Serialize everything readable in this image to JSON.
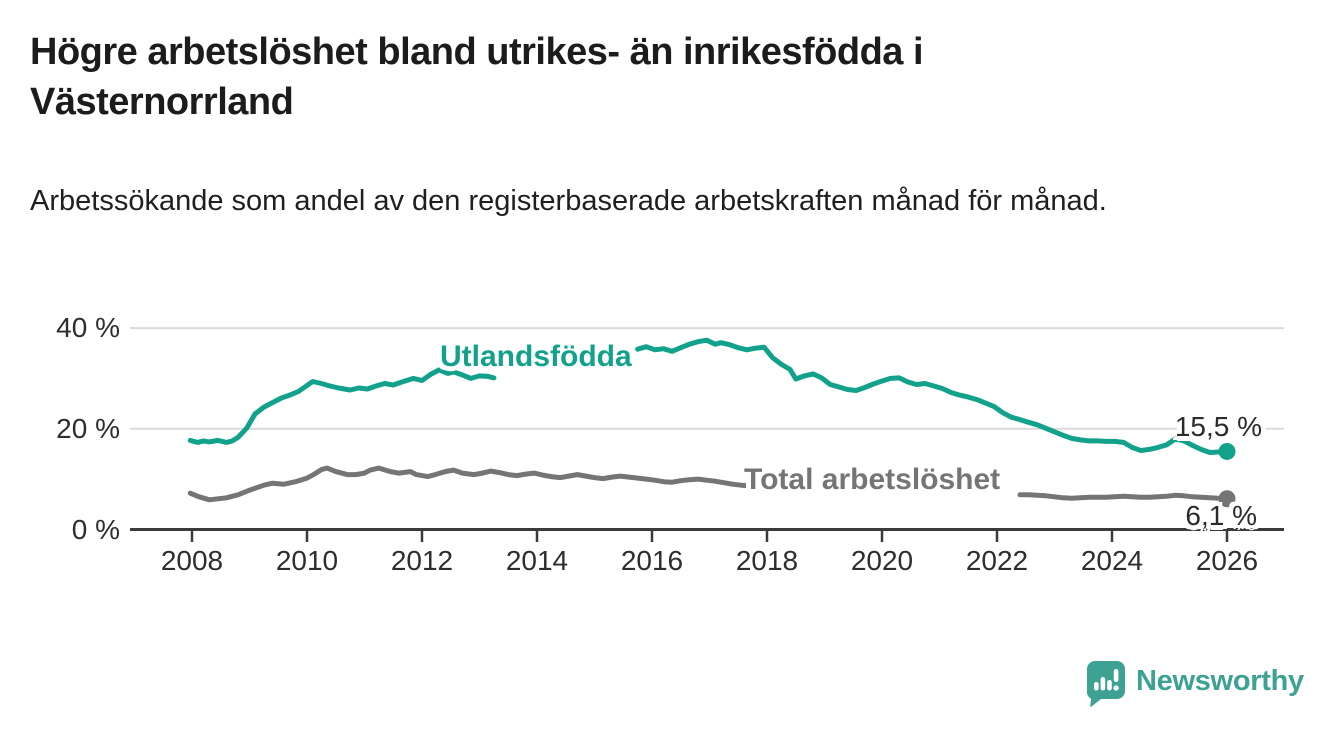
{
  "title": "Högre arbetslöshet bland utrikes- än inrikesfödda i Västernorrland",
  "subtitle": "Arbetssökande som andel av den registerbaserade arbetskraften månad för månad.",
  "branding": {
    "logo_text": "Newsworthy",
    "logo_icon": "speech-bubble-bar-chart-icon",
    "logo_color": "#3da193"
  },
  "colors": {
    "axis": "#3b3b3b",
    "grid": "#dadada",
    "title_text": "#1c1c1c",
    "value_label_text": "#2b2b2b",
    "series_utlandsfodda": "#12a28c",
    "series_total": "#757575"
  },
  "chart_data": {
    "type": "line",
    "title": "Högre arbetslöshet bland utrikes- än inrikesfödda i Västernorrland",
    "subtitle": "Arbetssökande som andel av den registerbaserade arbetskraften månad för månad.",
    "xlabel": "",
    "ylabel": "",
    "grid": "horizontal-only",
    "xlim": [
      2006.9,
      2027.0
    ],
    "ylim": [
      0,
      43
    ],
    "x_ticks": [
      2008,
      2010,
      2012,
      2014,
      2016,
      2018,
      2020,
      2022,
      2024,
      2026
    ],
    "y_ticks": [
      {
        "value": 0,
        "label": "0 %"
      },
      {
        "value": 20,
        "label": "20 %"
      },
      {
        "value": 40,
        "label": "40 %"
      }
    ],
    "note": "lines hidden where inline series labels overlap (gaps in point arrays)",
    "series": [
      {
        "name": "Utlandsfödda",
        "color": "#12a28c",
        "end_label": "15,5 %",
        "end_value": 15.5,
        "points": [
          [
            2007.97,
            17.7
          ],
          [
            2008.1,
            17.3
          ],
          [
            2008.2,
            17.6
          ],
          [
            2008.3,
            17.4
          ],
          [
            2008.45,
            17.7
          ],
          [
            2008.6,
            17.3
          ],
          [
            2008.7,
            17.6
          ],
          [
            2008.8,
            18.3
          ],
          [
            2008.95,
            20.1
          ],
          [
            2009.1,
            23.0
          ],
          [
            2009.25,
            24.3
          ],
          [
            2009.4,
            25.2
          ],
          [
            2009.55,
            26.1
          ],
          [
            2009.7,
            26.7
          ],
          [
            2009.85,
            27.4
          ],
          [
            2010.0,
            28.6
          ],
          [
            2010.1,
            29.4
          ],
          [
            2010.25,
            29.0
          ],
          [
            2010.4,
            28.5
          ],
          [
            2010.55,
            28.1
          ],
          [
            2010.75,
            27.7
          ],
          [
            2010.9,
            28.1
          ],
          [
            2011.05,
            27.9
          ],
          [
            2011.2,
            28.5
          ],
          [
            2011.35,
            29.0
          ],
          [
            2011.5,
            28.7
          ],
          [
            2011.65,
            29.3
          ],
          [
            2011.85,
            30.0
          ],
          [
            2012.0,
            29.6
          ],
          [
            2012.15,
            30.8
          ],
          [
            2012.3,
            31.7
          ],
          [
            2012.45,
            31.0
          ],
          [
            2012.55,
            31.3
          ],
          [
            2012.7,
            30.7
          ],
          [
            2012.85,
            30.0
          ],
          [
            2013.0,
            30.5
          ],
          [
            2013.15,
            30.4
          ],
          [
            2013.25,
            30.1
          ],
          [
            2015.75,
            35.8
          ],
          [
            2015.9,
            36.3
          ],
          [
            2016.05,
            35.7
          ],
          [
            2016.2,
            35.9
          ],
          [
            2016.35,
            35.4
          ],
          [
            2016.5,
            36.1
          ],
          [
            2016.65,
            36.8
          ],
          [
            2016.8,
            37.3
          ],
          [
            2016.95,
            37.6
          ],
          [
            2017.1,
            36.8
          ],
          [
            2017.2,
            37.1
          ],
          [
            2017.35,
            36.7
          ],
          [
            2017.5,
            36.1
          ],
          [
            2017.65,
            35.7
          ],
          [
            2017.8,
            36.0
          ],
          [
            2017.95,
            36.2
          ],
          [
            2018.1,
            34.1
          ],
          [
            2018.25,
            32.8
          ],
          [
            2018.4,
            31.8
          ],
          [
            2018.5,
            29.9
          ],
          [
            2018.65,
            30.5
          ],
          [
            2018.8,
            30.9
          ],
          [
            2018.95,
            30.1
          ],
          [
            2019.1,
            28.8
          ],
          [
            2019.25,
            28.3
          ],
          [
            2019.4,
            27.8
          ],
          [
            2019.55,
            27.6
          ],
          [
            2019.7,
            28.2
          ],
          [
            2019.85,
            28.9
          ],
          [
            2020.0,
            29.5
          ],
          [
            2020.15,
            30.0
          ],
          [
            2020.3,
            30.1
          ],
          [
            2020.45,
            29.3
          ],
          [
            2020.6,
            28.8
          ],
          [
            2020.75,
            29.0
          ],
          [
            2020.9,
            28.5
          ],
          [
            2021.05,
            28.0
          ],
          [
            2021.2,
            27.2
          ],
          [
            2021.35,
            26.7
          ],
          [
            2021.5,
            26.3
          ],
          [
            2021.65,
            25.8
          ],
          [
            2021.8,
            25.1
          ],
          [
            2021.95,
            24.4
          ],
          [
            2022.1,
            23.2
          ],
          [
            2022.25,
            22.3
          ],
          [
            2022.4,
            21.8
          ],
          [
            2022.55,
            21.3
          ],
          [
            2022.7,
            20.8
          ],
          [
            2022.85,
            20.1
          ],
          [
            2023.0,
            19.4
          ],
          [
            2023.15,
            18.7
          ],
          [
            2023.3,
            18.1
          ],
          [
            2023.45,
            17.8
          ],
          [
            2023.6,
            17.6
          ],
          [
            2023.75,
            17.6
          ],
          [
            2023.9,
            17.5
          ],
          [
            2024.05,
            17.5
          ],
          [
            2024.2,
            17.3
          ],
          [
            2024.35,
            16.3
          ],
          [
            2024.5,
            15.7
          ],
          [
            2024.65,
            15.9
          ],
          [
            2024.8,
            16.3
          ],
          [
            2024.95,
            16.8
          ],
          [
            2025.1,
            18.0
          ],
          [
            2025.25,
            17.6
          ],
          [
            2025.4,
            16.7
          ],
          [
            2025.55,
            15.9
          ],
          [
            2025.7,
            15.3
          ],
          [
            2025.85,
            15.4
          ],
          [
            2026.0,
            15.5
          ]
        ]
      },
      {
        "name": "Total arbetslöshet",
        "color": "#757575",
        "end_label": "6,1 %",
        "end_value": 6.1,
        "points": [
          [
            2007.97,
            7.2
          ],
          [
            2008.1,
            6.6
          ],
          [
            2008.3,
            5.9
          ],
          [
            2008.45,
            6.1
          ],
          [
            2008.6,
            6.3
          ],
          [
            2008.8,
            6.9
          ],
          [
            2009.0,
            7.8
          ],
          [
            2009.25,
            8.8
          ],
          [
            2009.4,
            9.2
          ],
          [
            2009.6,
            9.0
          ],
          [
            2009.8,
            9.5
          ],
          [
            2010.0,
            10.2
          ],
          [
            2010.1,
            10.8
          ],
          [
            2010.25,
            11.9
          ],
          [
            2010.35,
            12.2
          ],
          [
            2010.5,
            11.5
          ],
          [
            2010.7,
            10.9
          ],
          [
            2010.85,
            10.9
          ],
          [
            2011.0,
            11.2
          ],
          [
            2011.1,
            11.8
          ],
          [
            2011.25,
            12.2
          ],
          [
            2011.45,
            11.5
          ],
          [
            2011.6,
            11.2
          ],
          [
            2011.8,
            11.5
          ],
          [
            2011.9,
            10.9
          ],
          [
            2012.1,
            10.5
          ],
          [
            2012.2,
            10.8
          ],
          [
            2012.4,
            11.5
          ],
          [
            2012.55,
            11.8
          ],
          [
            2012.7,
            11.2
          ],
          [
            2012.9,
            10.9
          ],
          [
            2013.05,
            11.2
          ],
          [
            2013.2,
            11.6
          ],
          [
            2013.35,
            11.3
          ],
          [
            2013.5,
            10.9
          ],
          [
            2013.65,
            10.7
          ],
          [
            2013.8,
            11.0
          ],
          [
            2013.95,
            11.2
          ],
          [
            2014.1,
            10.8
          ],
          [
            2014.25,
            10.5
          ],
          [
            2014.4,
            10.3
          ],
          [
            2014.55,
            10.6
          ],
          [
            2014.7,
            10.9
          ],
          [
            2014.85,
            10.6
          ],
          [
            2015.0,
            10.3
          ],
          [
            2015.15,
            10.1
          ],
          [
            2015.3,
            10.4
          ],
          [
            2015.45,
            10.6
          ],
          [
            2015.6,
            10.4
          ],
          [
            2015.75,
            10.2
          ],
          [
            2015.9,
            10.0
          ],
          [
            2016.05,
            9.8
          ],
          [
            2016.2,
            9.5
          ],
          [
            2016.35,
            9.4
          ],
          [
            2016.5,
            9.7
          ],
          [
            2016.65,
            9.9
          ],
          [
            2016.8,
            10.0
          ],
          [
            2016.95,
            9.8
          ],
          [
            2017.1,
            9.6
          ],
          [
            2017.25,
            9.3
          ],
          [
            2017.4,
            9.0
          ],
          [
            2017.55,
            8.8
          ],
          [
            2017.7,
            8.7
          ],
          [
            2022.4,
            6.9
          ],
          [
            2022.55,
            6.9
          ],
          [
            2022.7,
            6.8
          ],
          [
            2022.85,
            6.7
          ],
          [
            2023.0,
            6.5
          ],
          [
            2023.15,
            6.3
          ],
          [
            2023.3,
            6.2
          ],
          [
            2023.45,
            6.3
          ],
          [
            2023.6,
            6.4
          ],
          [
            2023.75,
            6.4
          ],
          [
            2023.9,
            6.4
          ],
          [
            2024.05,
            6.5
          ],
          [
            2024.2,
            6.6
          ],
          [
            2024.35,
            6.5
          ],
          [
            2024.5,
            6.4
          ],
          [
            2024.65,
            6.4
          ],
          [
            2024.8,
            6.5
          ],
          [
            2024.95,
            6.6
          ],
          [
            2025.1,
            6.8
          ],
          [
            2025.25,
            6.7
          ],
          [
            2025.4,
            6.5
          ],
          [
            2025.55,
            6.4
          ],
          [
            2025.7,
            6.3
          ],
          [
            2025.85,
            6.2
          ],
          [
            2026.0,
            6.1
          ]
        ]
      }
    ]
  }
}
